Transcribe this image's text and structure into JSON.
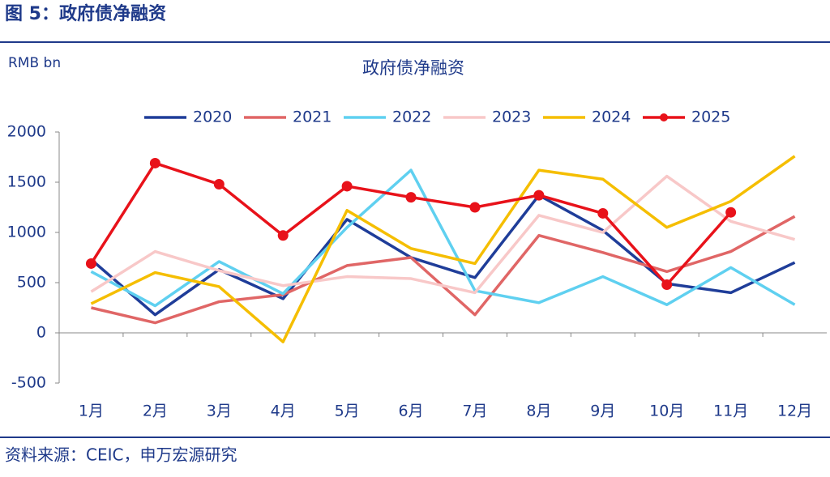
{
  "header": {
    "title": "图 5：政府债净融资"
  },
  "chart_data": {
    "type": "line",
    "title": "政府债净融资",
    "y_label": "RMB bn",
    "categories": [
      "1月",
      "2月",
      "3月",
      "4月",
      "5月",
      "6月",
      "7月",
      "8月",
      "9月",
      "10月",
      "11月",
      "12月"
    ],
    "series": [
      {
        "name": "2020",
        "color": "#1f3d99",
        "values": [
          730,
          180,
          630,
          340,
          1130,
          750,
          550,
          1370,
          1020,
          490,
          400,
          700
        ]
      },
      {
        "name": "2021",
        "color": "#e06666",
        "values": [
          250,
          100,
          310,
          380,
          670,
          750,
          180,
          970,
          800,
          610,
          810,
          1160
        ]
      },
      {
        "name": "2022",
        "color": "#5fd0f0",
        "values": [
          610,
          270,
          710,
          390,
          1050,
          1620,
          420,
          300,
          560,
          280,
          650,
          280
        ]
      },
      {
        "name": "2023",
        "color": "#f8c8c8",
        "values": [
          410,
          810,
          620,
          470,
          560,
          540,
          400,
          1170,
          1000,
          1560,
          1110,
          930
        ]
      },
      {
        "name": "2024",
        "color": "#f5be00",
        "values": [
          290,
          600,
          460,
          -90,
          1220,
          840,
          690,
          1620,
          1530,
          1050,
          1310,
          1760
        ]
      },
      {
        "name": "2025",
        "color": "#e8121a",
        "marker": "circle",
        "values": [
          690,
          1690,
          1480,
          970,
          1460,
          1350,
          1250,
          1370,
          1190,
          480,
          1200,
          null
        ]
      }
    ],
    "ylim": [
      -500,
      2000
    ],
    "yticks": [
      -500,
      0,
      500,
      1000,
      1500,
      2000
    ],
    "grid": false
  },
  "footer": {
    "source": "资料来源：CEIC，申万宏源研究"
  }
}
